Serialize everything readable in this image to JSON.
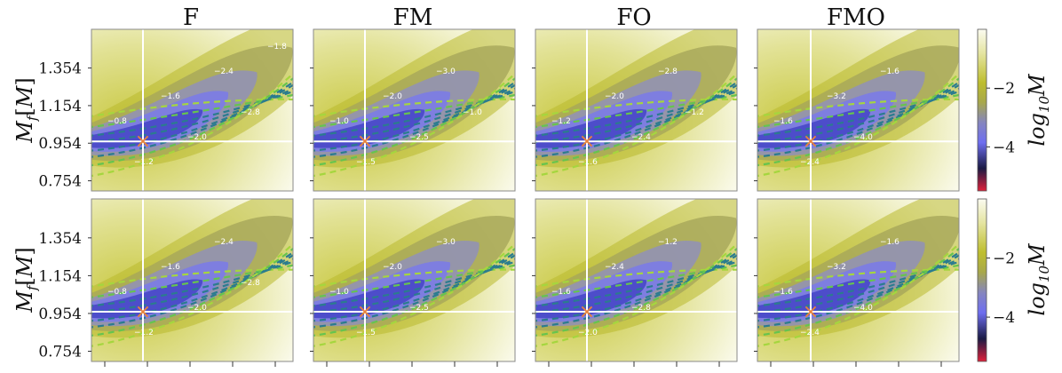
{
  "chart_data": {
    "type": "heatmap",
    "layout": "2 rows x 4 columns",
    "column_titles": [
      "F",
      "FM",
      "FO",
      "FMO"
    ],
    "ylabel": "M_f[M]",
    "ylabel_main": "M",
    "ylabel_sub": "f",
    "ylabel_bracket_open": "[",
    "ylabel_bracket_close": "]",
    "y_ticks": [
      "1.354",
      "1.154",
      "0.954",
      "0.754"
    ],
    "y_tick_values": [
      1.354,
      1.154,
      0.954,
      0.754
    ],
    "ylim": [
      0.7,
      1.56
    ],
    "x_tick_count": 5,
    "true_value_marker": "×",
    "colorbar_label": "log10 M",
    "colorbar_label_main": "log",
    "colorbar_label_sub": "10",
    "colorbar_label_script": "M",
    "colorbar_ticks": [
      "−2",
      "−4"
    ],
    "colorbar_tick_values": [
      -2,
      -4
    ],
    "colorbar_range": [
      -5.5,
      0
    ],
    "colorbar_colors": [
      "#fbfbf0",
      "#e4e4a0",
      "#bebe2e",
      "#a8a84a",
      "#8585c0",
      "#6e6ef0",
      "#1a1a44",
      "#e0203a"
    ],
    "contour_colors": [
      "#a5d63e",
      "#66c44e",
      "#3ea88a",
      "#2b7c8e",
      "#24466e"
    ],
    "colors": {
      "background_light": "#f7f7e2",
      "olive": "#b9b92e",
      "purple": "#7b7be6",
      "crosshair": "#ffffff",
      "marker": "#e8823a"
    },
    "panels": [
      {
        "row": 0,
        "col": 0,
        "title": "F",
        "contour_labels": [
          "−0.8",
          "−1.2",
          "−1.6",
          "−2.0",
          "−2.4",
          "−2.8",
          "−1.8"
        ]
      },
      {
        "row": 0,
        "col": 1,
        "title": "FM",
        "contour_labels": [
          "−1.0",
          "−1.5",
          "−2.0",
          "−2.5",
          "−3.0",
          "−1.0"
        ]
      },
      {
        "row": 0,
        "col": 2,
        "title": "FO",
        "contour_labels": [
          "−1.2",
          "−1.6",
          "−2.0",
          "−2.4",
          "−2.8",
          "−1.2"
        ]
      },
      {
        "row": 0,
        "col": 3,
        "title": "FMO",
        "contour_labels": [
          "−1.6",
          "−2.4",
          "−3.2",
          "−4.0",
          "−1.6"
        ]
      },
      {
        "row": 1,
        "col": 0,
        "title": "F",
        "contour_labels": [
          "−0.8",
          "−1.2",
          "−1.6",
          "−2.0",
          "−2.4",
          "−2.8"
        ]
      },
      {
        "row": 1,
        "col": 1,
        "title": "FM",
        "contour_labels": [
          "−1.0",
          "−1.5",
          "−2.0",
          "−2.5",
          "−3.0"
        ]
      },
      {
        "row": 1,
        "col": 2,
        "title": "FO",
        "contour_labels": [
          "−1.6",
          "−2.0",
          "−2.4",
          "−2.8",
          "−1.2"
        ]
      },
      {
        "row": 1,
        "col": 3,
        "title": "FMO",
        "contour_labels": [
          "−1.6",
          "−2.4",
          "−3.2",
          "−4.0",
          "−1.6"
        ]
      }
    ]
  }
}
